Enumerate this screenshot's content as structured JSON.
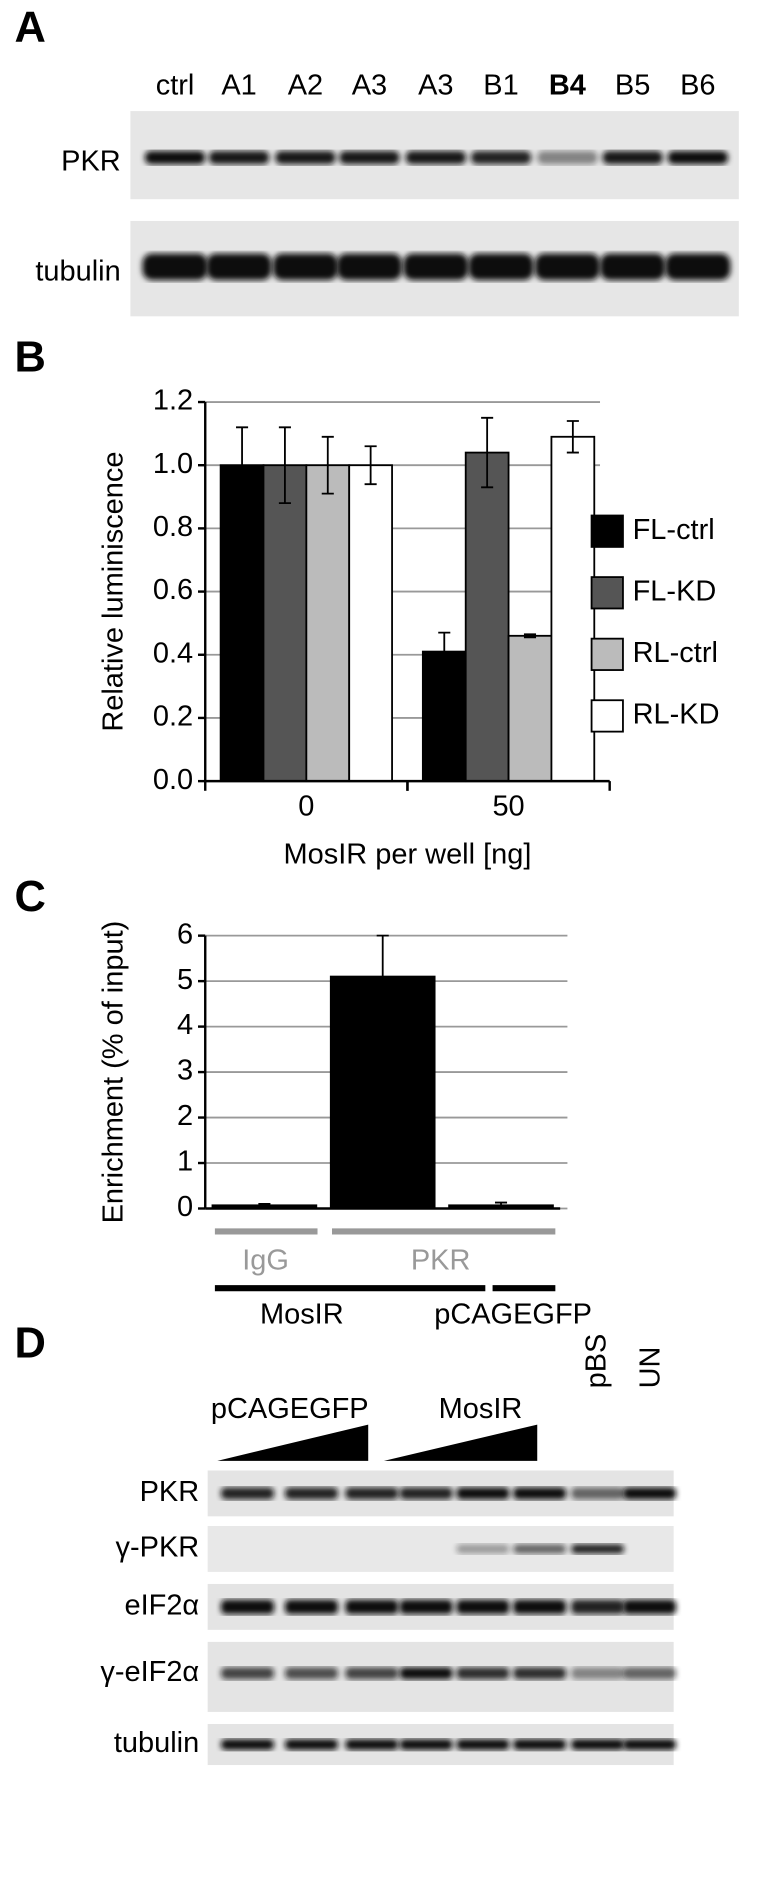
{
  "panel_labels": [
    "A",
    "B",
    "C",
    "D"
  ],
  "blot_a": {
    "lanes": [
      "ctrl",
      "A1",
      "A2",
      "A3",
      "A3",
      "B1",
      "B4",
      "B5",
      "B6"
    ],
    "rows": [
      "PKR",
      "tubulin"
    ]
  },
  "chart_data": [
    {
      "type": "bar",
      "ylabel": "Relative luminiscence",
      "xlabel": "MosIR per well [ng]",
      "categories": [
        "0",
        "50"
      ],
      "series": [
        {
          "name": "FL-ctrl",
          "color": "#000000",
          "values": [
            1.0,
            0.41
          ],
          "errors": [
            0.12,
            0.06
          ]
        },
        {
          "name": "FL-KD",
          "color": "#555555",
          "values": [
            1.0,
            1.04
          ],
          "errors": [
            0.12,
            0.11
          ]
        },
        {
          "name": "RL-ctrl",
          "color": "#bbbbbb",
          "values": [
            1.0,
            0.46
          ],
          "errors": [
            0.09,
            0.005
          ]
        },
        {
          "name": "RL-KD",
          "color": "#ffffff",
          "values": [
            1.0,
            1.09
          ],
          "errors": [
            0.06,
            0.05
          ]
        }
      ],
      "ylim": [
        0,
        1.2
      ],
      "yticks": [
        {
          "value": 0,
          "label": "0.0"
        },
        0.2,
        0.4,
        0.6,
        0.8,
        {
          "value": 1,
          "label": "1.0"
        },
        1.2
      ],
      "grid": true,
      "legend": "right"
    },
    {
      "type": "bar",
      "ylabel": "Enrichment (% of input)",
      "categories": [
        null,
        null,
        null
      ],
      "series": [
        {
          "color": "#000000",
          "values": [
            0.07,
            5.1,
            0.07
          ],
          "errors": [
            0.03,
            0.9,
            0.06
          ]
        }
      ],
      "ylim": [
        0,
        6
      ],
      "yticks": [
        0,
        1,
        2,
        3,
        4,
        5,
        6
      ],
      "grid": true,
      "annotations": [
        "IgG",
        "PKR",
        "MosIR",
        "pCAGEGFP"
      ]
    }
  ],
  "blot_d": {
    "groups": [
      "pCAGEGFP",
      "MosIR"
    ],
    "lanes": [
      "pBS",
      "UN"
    ],
    "rows": [
      "PKR",
      "γ-PKR",
      "eIF2α",
      "γ-eIF2α",
      "tubulin"
    ]
  }
}
